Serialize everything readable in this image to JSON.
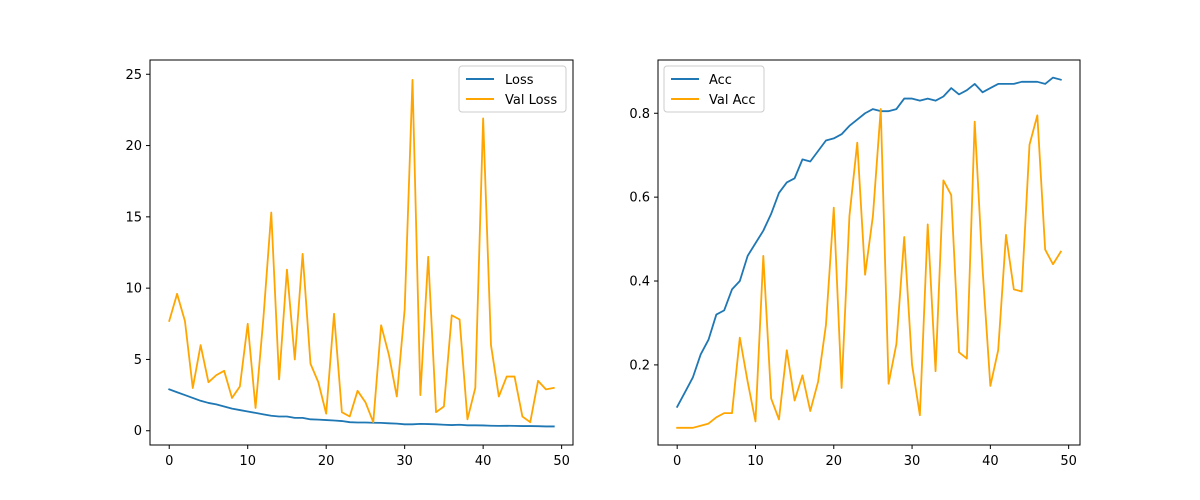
{
  "colors": {
    "series1": "#1f77b4",
    "series2": "#ffa500",
    "axis": "#000000",
    "legend_border": "#cccccc"
  },
  "chart_data": [
    {
      "type": "line",
      "title": "",
      "xlabel": "",
      "ylabel": "",
      "xlim": [
        -2.45,
        51.45
      ],
      "ylim": [
        -1.0,
        26.0
      ],
      "xticks": [
        0,
        10,
        20,
        30,
        40,
        50
      ],
      "yticks": [
        0,
        5,
        10,
        15,
        20,
        25
      ],
      "legend_position": "top-right",
      "x": [
        0,
        1,
        2,
        3,
        4,
        5,
        6,
        7,
        8,
        9,
        10,
        11,
        12,
        13,
        14,
        15,
        16,
        17,
        18,
        19,
        20,
        21,
        22,
        23,
        24,
        25,
        26,
        27,
        28,
        29,
        30,
        31,
        32,
        33,
        34,
        35,
        36,
        37,
        38,
        39,
        40,
        41,
        42,
        43,
        44,
        45,
        46,
        47,
        48,
        49
      ],
      "series": [
        {
          "name": "Loss",
          "color": "#1f77b4",
          "values": [
            2.9,
            2.7,
            2.5,
            2.3,
            2.1,
            1.95,
            1.85,
            1.7,
            1.55,
            1.45,
            1.35,
            1.25,
            1.15,
            1.05,
            1.0,
            1.0,
            0.9,
            0.9,
            0.8,
            0.78,
            0.75,
            0.72,
            0.68,
            0.6,
            0.58,
            0.58,
            0.56,
            0.55,
            0.52,
            0.5,
            0.45,
            0.45,
            0.48,
            0.47,
            0.45,
            0.42,
            0.4,
            0.42,
            0.38,
            0.38,
            0.37,
            0.35,
            0.34,
            0.35,
            0.34,
            0.33,
            0.33,
            0.32,
            0.3,
            0.3
          ]
        },
        {
          "name": "Val Loss",
          "color": "#ffa500",
          "values": [
            7.7,
            9.6,
            7.7,
            3.0,
            6.0,
            3.4,
            3.9,
            4.2,
            2.3,
            3.1,
            7.5,
            1.6,
            7.9,
            15.3,
            3.6,
            11.3,
            5.0,
            12.4,
            4.7,
            3.4,
            1.2,
            8.2,
            1.3,
            1.0,
            2.8,
            2.0,
            0.6,
            7.4,
            5.3,
            2.4,
            8.5,
            24.6,
            2.5,
            12.2,
            1.3,
            1.7,
            8.1,
            7.8,
            0.8,
            3.0,
            21.9,
            6.0,
            2.4,
            3.8,
            3.8,
            1.0,
            0.6,
            3.5,
            2.9,
            3.0
          ]
        }
      ]
    },
    {
      "type": "line",
      "title": "",
      "xlabel": "",
      "ylabel": "",
      "xlim": [
        -2.45,
        51.45
      ],
      "ylim": [
        0.009,
        0.927
      ],
      "xticks": [
        0,
        10,
        20,
        30,
        40,
        50
      ],
      "yticks": [
        0.2,
        0.4,
        0.6,
        0.8
      ],
      "legend_position": "top-left",
      "x": [
        0,
        1,
        2,
        3,
        4,
        5,
        6,
        7,
        8,
        9,
        10,
        11,
        12,
        13,
        14,
        15,
        16,
        17,
        18,
        19,
        20,
        21,
        22,
        23,
        24,
        25,
        26,
        27,
        28,
        29,
        30,
        31,
        32,
        33,
        34,
        35,
        36,
        37,
        38,
        39,
        40,
        41,
        42,
        43,
        44,
        45,
        46,
        47,
        48,
        49
      ],
      "series": [
        {
          "name": "Acc",
          "color": "#1f77b4",
          "values": [
            0.1,
            0.135,
            0.17,
            0.225,
            0.26,
            0.32,
            0.33,
            0.38,
            0.4,
            0.46,
            0.49,
            0.52,
            0.56,
            0.61,
            0.635,
            0.645,
            0.69,
            0.685,
            0.71,
            0.735,
            0.74,
            0.75,
            0.77,
            0.785,
            0.8,
            0.81,
            0.805,
            0.805,
            0.81,
            0.835,
            0.835,
            0.83,
            0.835,
            0.83,
            0.84,
            0.86,
            0.845,
            0.855,
            0.87,
            0.85,
            0.86,
            0.87,
            0.87,
            0.87,
            0.875,
            0.875,
            0.875,
            0.87,
            0.885,
            0.88
          ]
        },
        {
          "name": "Val Acc",
          "color": "#ffa500",
          "values": [
            0.05,
            0.05,
            0.05,
            0.055,
            0.06,
            0.075,
            0.085,
            0.085,
            0.265,
            0.16,
            0.065,
            0.46,
            0.12,
            0.07,
            0.235,
            0.115,
            0.175,
            0.09,
            0.16,
            0.295,
            0.575,
            0.145,
            0.555,
            0.73,
            0.415,
            0.555,
            0.81,
            0.155,
            0.25,
            0.505,
            0.2,
            0.08,
            0.535,
            0.185,
            0.64,
            0.605,
            0.23,
            0.215,
            0.78,
            0.43,
            0.15,
            0.235,
            0.51,
            0.38,
            0.375,
            0.725,
            0.795,
            0.475,
            0.44,
            0.47
          ]
        }
      ]
    }
  ]
}
